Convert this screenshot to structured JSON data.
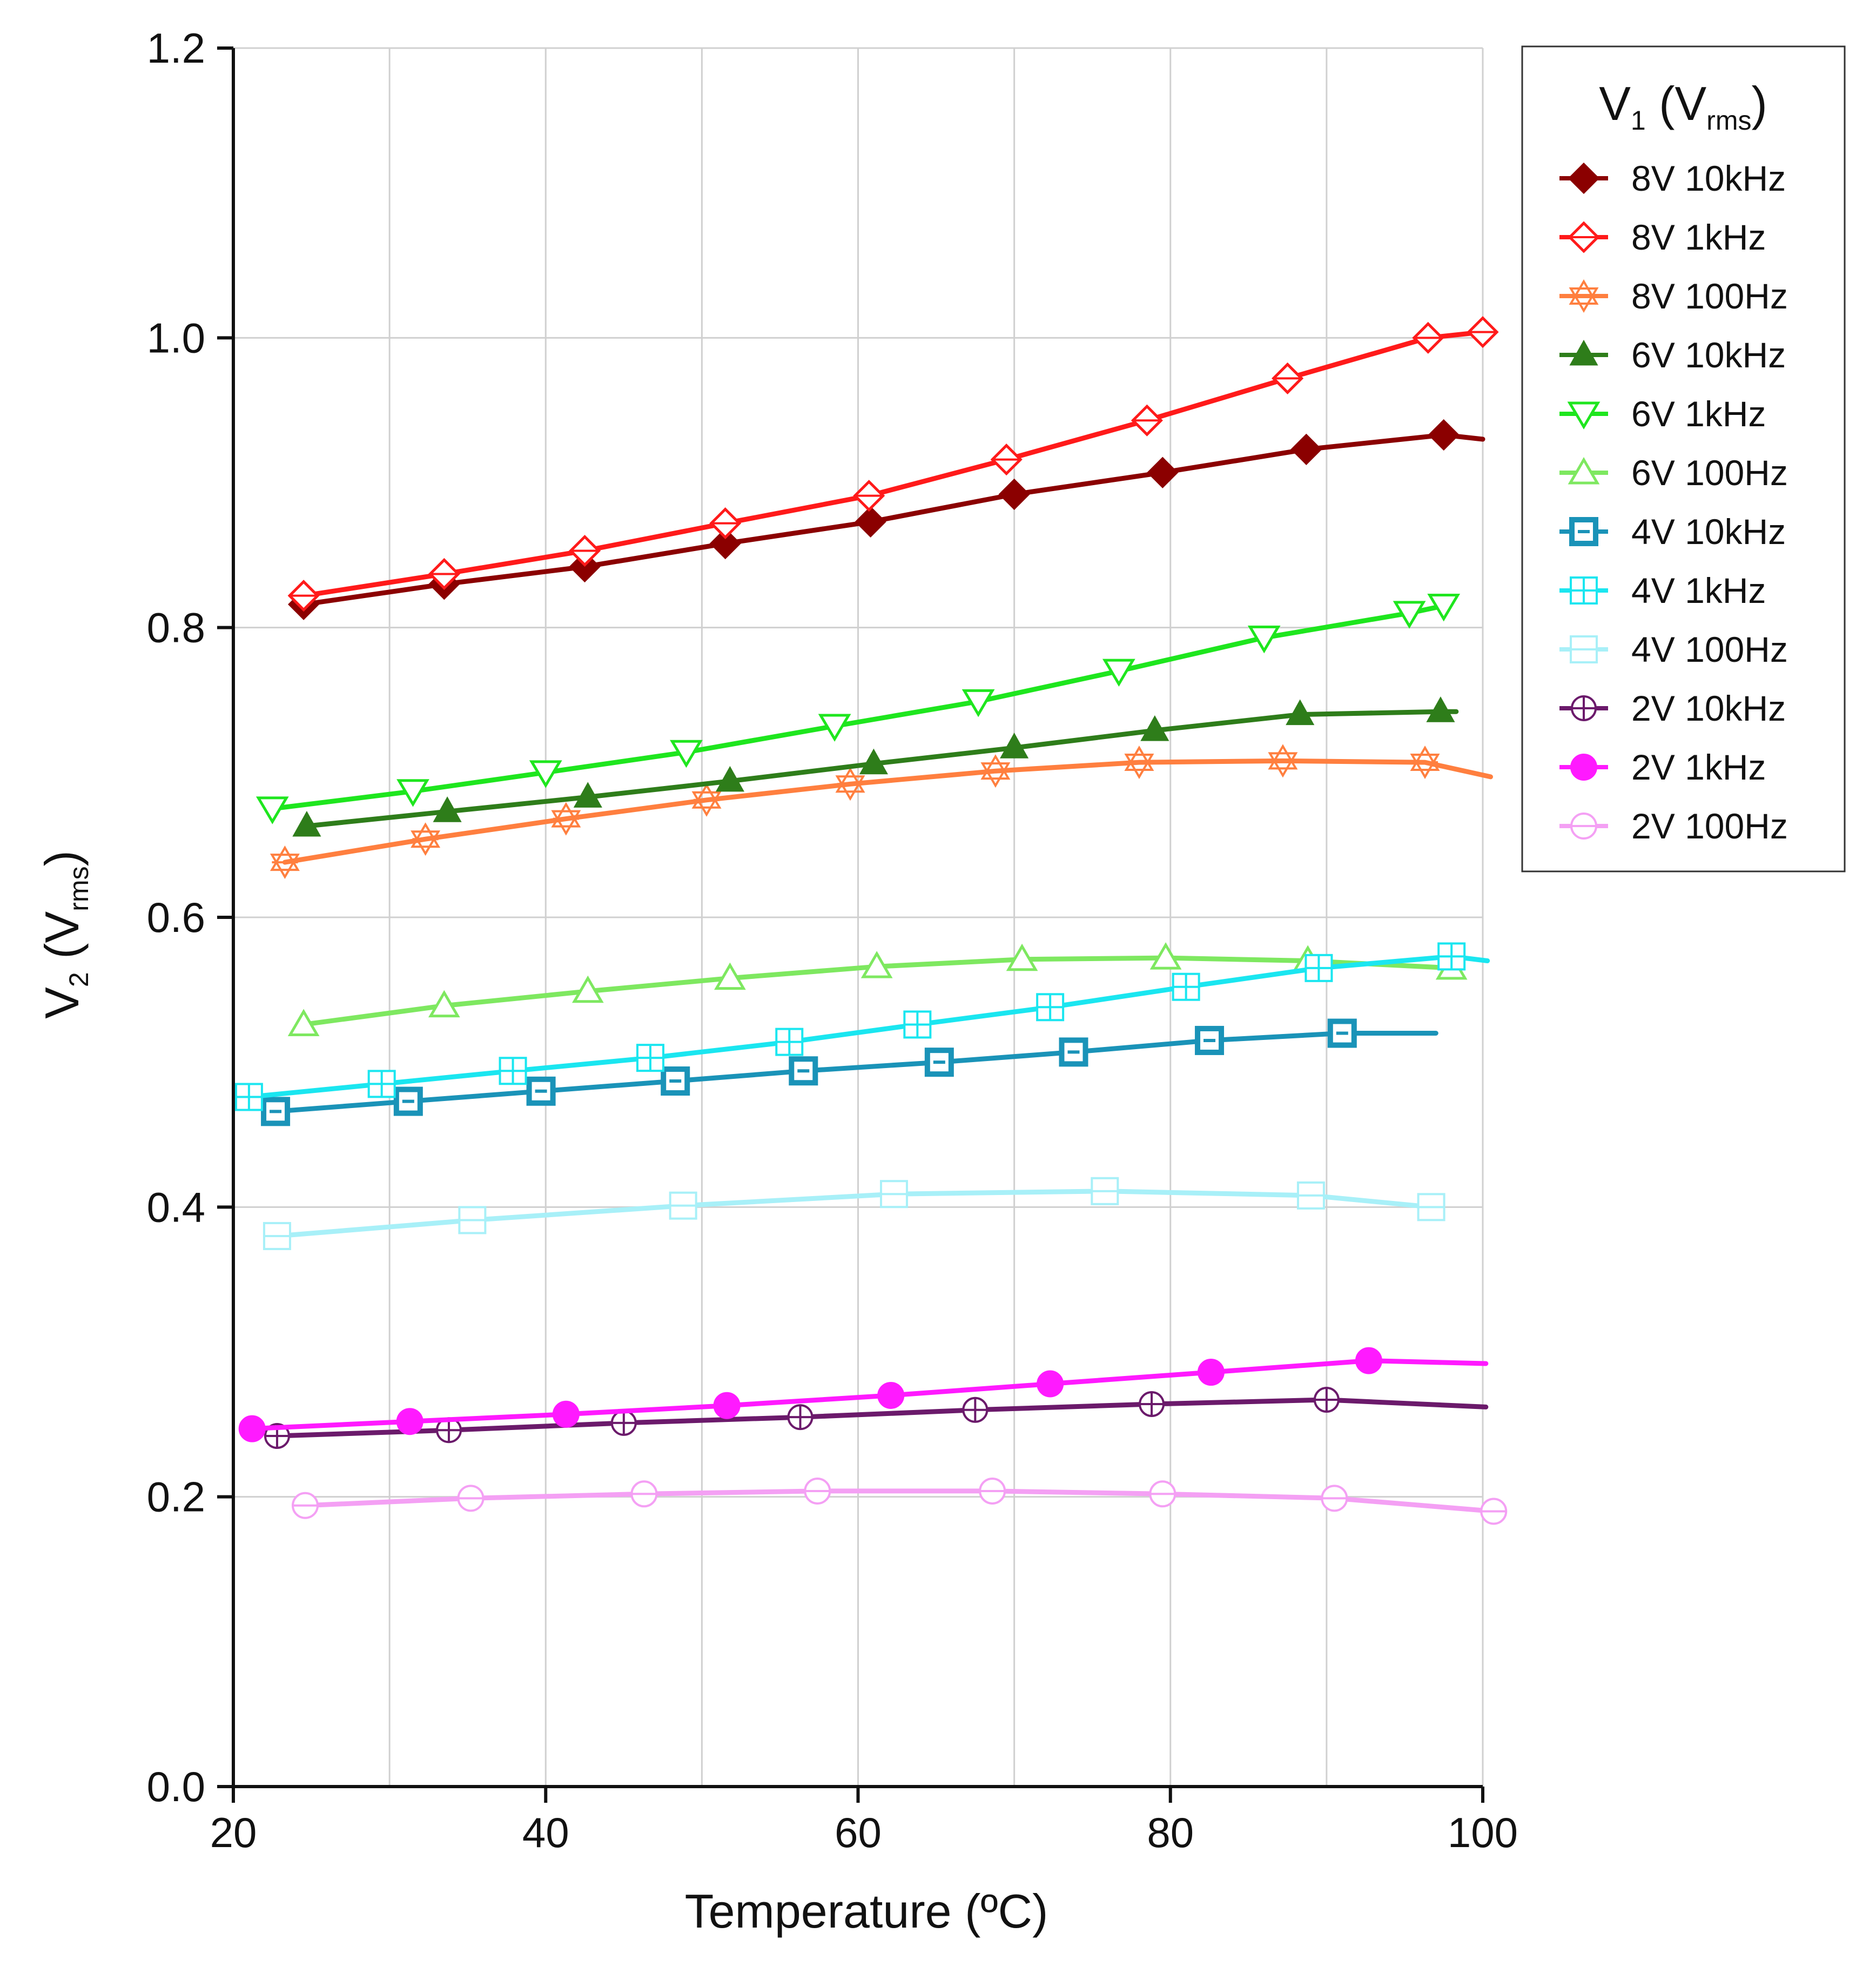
{
  "chart_data": {
    "type": "line",
    "xlabel": "Temperature (ºC)",
    "ylabel": {
      "main": "V",
      "sub": "2",
      "unit_open": " (V",
      "unit_sub": "rms",
      "unit_close": ")"
    },
    "xlim": [
      20,
      100
    ],
    "ylim": [
      0.0,
      1.2
    ],
    "x_ticks": [
      20,
      40,
      60,
      80,
      100
    ],
    "y_ticks": [
      0.0,
      0.2,
      0.4,
      0.6,
      0.8,
      1.0,
      1.2
    ],
    "x_tick_labels": [
      "20",
      "40",
      "60",
      "80",
      "100"
    ],
    "y_tick_labels": [
      "0.0",
      "0.2",
      "0.4",
      "0.6",
      "0.8",
      "1.0",
      "1.2"
    ],
    "grid": true,
    "legend": {
      "position": "top-right",
      "title": {
        "main": "V",
        "sub": "1",
        "unit_open": " (V",
        "unit_sub": "rms",
        "unit_close": ")"
      }
    },
    "series": [
      {
        "name": "8V 10kHz",
        "color": "#8b0000",
        "marker": "diamond-filled",
        "x": [
          24.5,
          33.5,
          42.5,
          51.5,
          60.8,
          70,
          79.5,
          88.7,
          97.5,
          100
        ],
        "y": [
          0.816,
          0.83,
          0.842,
          0.858,
          0.873,
          0.892,
          0.907,
          0.923,
          0.933,
          0.93
        ],
        "marker_x": [
          24.5,
          33.5,
          42.5,
          51.5,
          60.8,
          70,
          79.5,
          88.7,
          97.5
        ]
      },
      {
        "name": "8V 1kHz",
        "color": "#ff1a1a",
        "marker": "diamond-open",
        "x": [
          24.5,
          33.5,
          42.5,
          51.5,
          60.7,
          69.5,
          78.5,
          87.5,
          96.5,
          100
        ],
        "y": [
          0.822,
          0.837,
          0.853,
          0.872,
          0.891,
          0.916,
          0.943,
          0.972,
          1.0,
          1.004
        ],
        "marker_x": [
          24.5,
          33.5,
          42.5,
          51.5,
          60.7,
          69.5,
          78.5,
          87.5,
          96.5,
          100
        ]
      },
      {
        "name": "8V 100Hz",
        "color": "#ff7f3f",
        "marker": "star-open",
        "x": [
          23.3,
          32.3,
          41.3,
          50.3,
          59.5,
          68.8,
          78,
          87.2,
          96.3,
          100.5
        ],
        "y": [
          0.638,
          0.654,
          0.668,
          0.681,
          0.692,
          0.701,
          0.707,
          0.708,
          0.707,
          0.697
        ],
        "marker_x": [
          23.3,
          32.3,
          41.3,
          50.3,
          59.5,
          68.8,
          78,
          87.2,
          96.3
        ]
      },
      {
        "name": "6V 10kHz",
        "color": "#2e7d1a",
        "marker": "triangle-up-filled",
        "x": [
          24.7,
          33.7,
          42.7,
          51.8,
          61,
          70,
          79,
          88.3,
          97.3,
          98.3
        ],
        "y": [
          0.663,
          0.673,
          0.683,
          0.694,
          0.706,
          0.717,
          0.729,
          0.74,
          0.742,
          0.742
        ],
        "marker_x": [
          24.7,
          33.7,
          42.7,
          51.8,
          61,
          70,
          79,
          88.3,
          97.3
        ]
      },
      {
        "name": "6V 1kHz",
        "color": "#1ee61e",
        "marker": "triangle-down-open",
        "x": [
          22.5,
          31.5,
          40,
          49,
          58.5,
          67.7,
          76.7,
          86,
          95.3,
          97.5
        ],
        "y": [
          0.675,
          0.687,
          0.7,
          0.714,
          0.732,
          0.749,
          0.77,
          0.793,
          0.81,
          0.815
        ],
        "marker_x": [
          22.5,
          31.5,
          40,
          49,
          58.5,
          67.7,
          76.7,
          86,
          95.3,
          97.5
        ]
      },
      {
        "name": "6V 100Hz",
        "color": "#7ee860",
        "marker": "triangle-up-open",
        "x": [
          24.5,
          33.5,
          42.7,
          51.8,
          61.2,
          70.5,
          79.7,
          88.8,
          98
        ],
        "y": [
          0.526,
          0.539,
          0.549,
          0.558,
          0.566,
          0.571,
          0.572,
          0.57,
          0.565
        ],
        "marker_x": [
          24.5,
          33.5,
          42.7,
          51.8,
          61.2,
          70.5,
          79.7,
          88.8,
          98
        ]
      },
      {
        "name": "4V 10kHz",
        "color": "#1a93b8",
        "marker": "square-minus",
        "x": [
          22.7,
          31.2,
          39.7,
          48.3,
          56.5,
          65.2,
          73.8,
          82.5,
          91,
          97
        ],
        "y": [
          0.466,
          0.473,
          0.48,
          0.487,
          0.494,
          0.5,
          0.507,
          0.515,
          0.52,
          0.52
        ],
        "marker_x": [
          22.7,
          31.2,
          39.7,
          48.3,
          56.5,
          65.2,
          73.8,
          82.5,
          91
        ]
      },
      {
        "name": "4V 1kHz",
        "color": "#1ae6f0",
        "marker": "square-grid",
        "x": [
          21,
          29.5,
          37.9,
          46.7,
          55.6,
          63.8,
          72.3,
          81,
          89.5,
          98,
          100.3
        ],
        "y": [
          0.476,
          0.485,
          0.494,
          0.503,
          0.514,
          0.526,
          0.538,
          0.552,
          0.565,
          0.573,
          0.57
        ],
        "marker_x": [
          21,
          29.5,
          37.9,
          46.7,
          55.6,
          63.8,
          72.3,
          81,
          89.5,
          98
        ]
      },
      {
        "name": "4V 100Hz",
        "color": "#a8f0f8",
        "marker": "square-line",
        "x": [
          22.8,
          35.3,
          48.8,
          62.3,
          75.8,
          89,
          96.7,
          97.3
        ],
        "y": [
          0.38,
          0.391,
          0.401,
          0.409,
          0.411,
          0.408,
          0.4,
          0.399
        ],
        "marker_x": [
          22.8,
          35.3,
          48.8,
          62.3,
          75.8,
          89,
          96.7
        ]
      },
      {
        "name": "2V 10kHz",
        "color": "#6b1a6b",
        "marker": "circle-cross",
        "x": [
          22.8,
          33.8,
          45,
          56.3,
          67.5,
          78.8,
          90,
          100.2
        ],
        "y": [
          0.242,
          0.246,
          0.251,
          0.255,
          0.26,
          0.264,
          0.267,
          0.262
        ],
        "marker_x": [
          22.8,
          33.8,
          45,
          56.3,
          67.5,
          78.8,
          90
        ]
      },
      {
        "name": "2V 1kHz",
        "color": "#ff1aff",
        "marker": "circle-filled",
        "x": [
          21.2,
          31.3,
          41.3,
          51.6,
          62.1,
          72.3,
          82.6,
          92.7,
          100.2
        ],
        "y": [
          0.247,
          0.252,
          0.257,
          0.263,
          0.27,
          0.278,
          0.286,
          0.294,
          0.292
        ],
        "marker_x": [
          21.2,
          31.3,
          41.3,
          51.6,
          62.1,
          72.3,
          82.6,
          92.7
        ]
      },
      {
        "name": "2V 100Hz",
        "color": "#f4a0f4",
        "marker": "circle-line",
        "x": [
          24.6,
          35.2,
          46.3,
          57.4,
          68.6,
          79.5,
          90.5,
          100.7
        ],
        "y": [
          0.194,
          0.199,
          0.202,
          0.204,
          0.204,
          0.202,
          0.199,
          0.19
        ],
        "marker_x": [
          24.6,
          35.2,
          46.3,
          57.4,
          68.6,
          79.5,
          90.5,
          100.7
        ]
      }
    ]
  }
}
